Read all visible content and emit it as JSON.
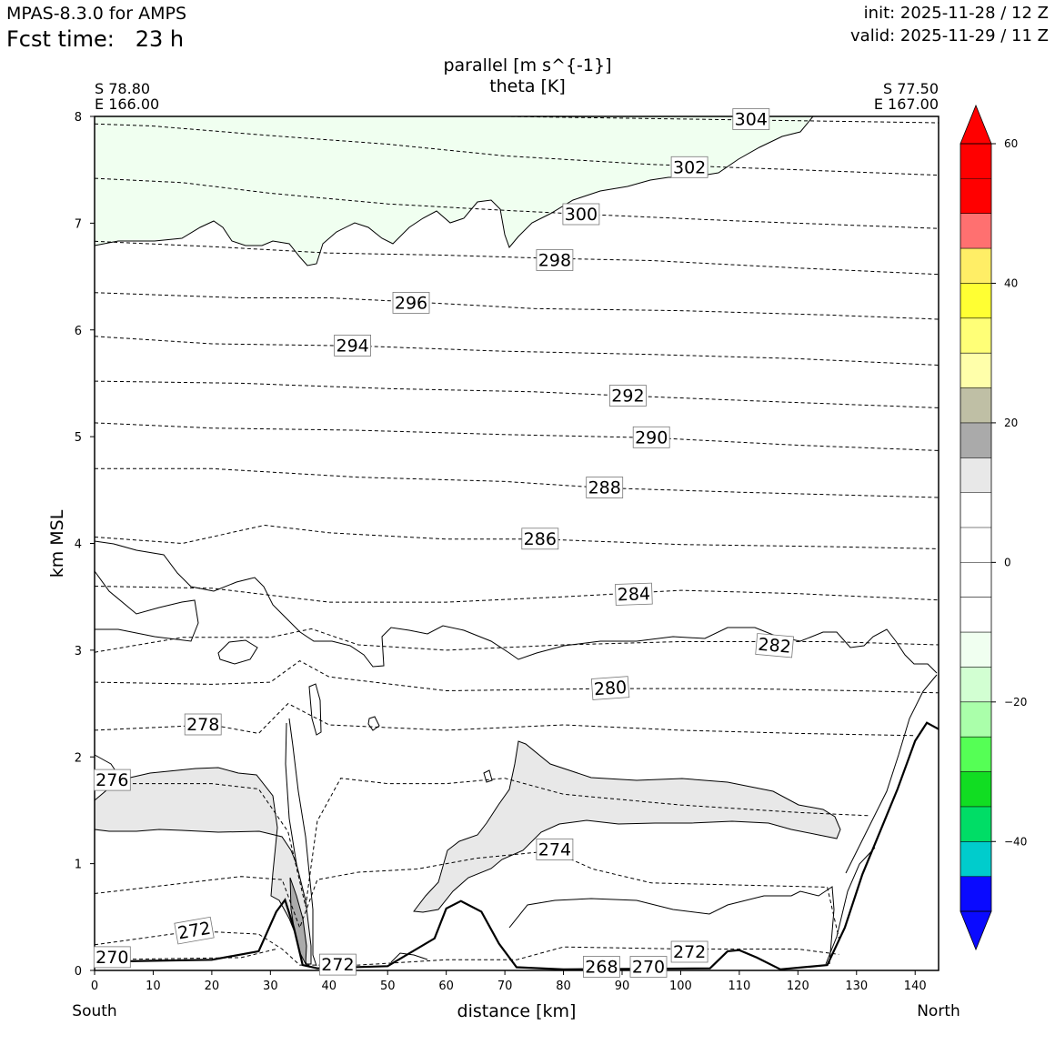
{
  "header": {
    "model": "MPAS-8.3.0 for AMPS",
    "fcst_label": "Fcst time:",
    "fcst_value": "23 h",
    "init": "init: 2025-11-28 / 12 Z",
    "valid": "valid: 2025-11-29 / 11 Z"
  },
  "chart_data": {
    "type": "contour",
    "title_line1": "parallel [m s^{-1}]",
    "title_line2": "theta [K]",
    "left_endpoint": {
      "lat": "S 78.80",
      "lon": "E 166.00"
    },
    "right_endpoint": {
      "lat": "S 77.50",
      "lon": "E 167.00"
    },
    "xlabel": "distance [km]",
    "ylabel": "km MSL",
    "x_ticks": [
      0,
      10,
      20,
      30,
      40,
      50,
      60,
      70,
      80,
      90,
      100,
      110,
      120,
      130,
      140
    ],
    "y_ticks": [
      0,
      1,
      2,
      3,
      4,
      5,
      6,
      7,
      8
    ],
    "xlim": [
      0,
      144
    ],
    "ylim": [
      0,
      8
    ],
    "south_label": "South",
    "north_label": "North",
    "colorbar": {
      "levels": [
        -50,
        -45,
        -40,
        -35,
        -30,
        -25,
        -20,
        -15,
        -10,
        -5,
        0,
        5,
        10,
        15,
        20,
        25,
        30,
        35,
        40,
        45,
        50,
        55,
        60
      ],
      "colors": [
        "#0a0aff",
        "#00cccc",
        "#00dd66",
        "#11dd22",
        "#55ff55",
        "#aaffaa",
        "#d2ffd2",
        "#f0fff0",
        "#ffffff",
        "#ffffff",
        "#ffffff",
        "#ffffff",
        "#e8e8e8",
        "#aaaaaa",
        "#bfbfa5",
        "#ffffaa",
        "#ffff77",
        "#ffff33",
        "#ffee66",
        "#ff7070",
        "#ff0000",
        "#ff0000"
      ],
      "under_color": "#0a0aff",
      "over_color": "#ff0000",
      "tick_values": [
        -40,
        -20,
        0,
        20,
        40,
        60
      ],
      "tick_labels": [
        "−40",
        "−20",
        "0",
        "20",
        "40",
        "60"
      ]
    },
    "theta_labels": [
      {
        "value": "304",
        "x": 112,
        "y": 7.97,
        "angle": 0
      },
      {
        "value": "302",
        "x": 101.5,
        "y": 7.52,
        "angle": 0
      },
      {
        "value": "300",
        "x": 83,
        "y": 7.08,
        "angle": 0
      },
      {
        "value": "298",
        "x": 78.5,
        "y": 6.65,
        "angle": 0
      },
      {
        "value": "296",
        "x": 54,
        "y": 6.25,
        "angle": 0
      },
      {
        "value": "294",
        "x": 44,
        "y": 5.85,
        "angle": 0
      },
      {
        "value": "292",
        "x": 91,
        "y": 5.38,
        "angle": 0
      },
      {
        "value": "290",
        "x": 95,
        "y": 4.99,
        "angle": 0
      },
      {
        "value": "288",
        "x": 87,
        "y": 4.52,
        "angle": 0
      },
      {
        "value": "286",
        "x": 76,
        "y": 4.04,
        "angle": 0
      },
      {
        "value": "284",
        "x": 92,
        "y": 3.52,
        "angle": -2
      },
      {
        "value": "282",
        "x": 116,
        "y": 3.04,
        "angle": 5
      },
      {
        "value": "280",
        "x": 88,
        "y": 2.64,
        "angle": -4
      },
      {
        "value": "278",
        "x": 18.5,
        "y": 2.3,
        "angle": 0
      },
      {
        "value": "276",
        "x": 3,
        "y": 1.78,
        "angle": 0
      },
      {
        "value": "274",
        "x": 78.5,
        "y": 1.13,
        "angle": 0
      },
      {
        "value": "272",
        "x": 17,
        "y": 0.37,
        "angle": -10
      },
      {
        "value": "272",
        "x": 41.5,
        "y": 0.05,
        "angle": 0
      },
      {
        "value": "268",
        "x": 86.5,
        "y": 0.03,
        "angle": 0
      },
      {
        "value": "270",
        "x": 94.5,
        "y": 0.03,
        "angle": 0
      },
      {
        "value": "272",
        "x": 101.5,
        "y": 0.17,
        "angle": 0
      },
      {
        "value": "270",
        "x": 3,
        "y": 0.12,
        "angle": 0
      }
    ],
    "theta_isentropes": [
      {
        "theta": 304,
        "points": [
          [
            70,
            8.0
          ],
          [
            144,
            7.94
          ]
        ]
      },
      {
        "theta": 302,
        "points": [
          [
            0,
            7.93
          ],
          [
            10,
            7.91
          ],
          [
            30,
            7.82
          ],
          [
            50,
            7.74
          ],
          [
            70,
            7.63
          ],
          [
            95,
            7.55
          ],
          [
            120,
            7.5
          ],
          [
            144,
            7.45
          ]
        ]
      },
      {
        "theta": 300,
        "points": [
          [
            0,
            7.42
          ],
          [
            15,
            7.38
          ],
          [
            30,
            7.28
          ],
          [
            50,
            7.18
          ],
          [
            70,
            7.12
          ],
          [
            85,
            7.08
          ],
          [
            110,
            7.02
          ],
          [
            144,
            6.95
          ]
        ]
      },
      {
        "theta": 298,
        "points": [
          [
            0,
            6.83
          ],
          [
            20,
            6.78
          ],
          [
            40,
            6.72
          ],
          [
            60,
            6.7
          ],
          [
            78,
            6.67
          ],
          [
            95,
            6.65
          ],
          [
            120,
            6.58
          ],
          [
            144,
            6.52
          ]
        ]
      },
      {
        "theta": 296,
        "points": [
          [
            0,
            6.35
          ],
          [
            25,
            6.3
          ],
          [
            40,
            6.3
          ],
          [
            55,
            6.26
          ],
          [
            75,
            6.2
          ],
          [
            100,
            6.18
          ],
          [
            125,
            6.14
          ],
          [
            144,
            6.1
          ]
        ]
      },
      {
        "theta": 294,
        "points": [
          [
            0,
            5.94
          ],
          [
            20,
            5.87
          ],
          [
            45,
            5.85
          ],
          [
            70,
            5.8
          ],
          [
            95,
            5.77
          ],
          [
            120,
            5.73
          ],
          [
            144,
            5.67
          ]
        ]
      },
      {
        "theta": 292,
        "points": [
          [
            0,
            5.52
          ],
          [
            25,
            5.5
          ],
          [
            50,
            5.45
          ],
          [
            75,
            5.42
          ],
          [
            92,
            5.38
          ],
          [
            115,
            5.33
          ],
          [
            144,
            5.27
          ]
        ]
      },
      {
        "theta": 290,
        "points": [
          [
            0,
            5.13
          ],
          [
            20,
            5.08
          ],
          [
            45,
            5.06
          ],
          [
            70,
            5.02
          ],
          [
            95,
            4.99
          ],
          [
            120,
            4.92
          ],
          [
            144,
            4.87
          ]
        ]
      },
      {
        "theta": 288,
        "points": [
          [
            0,
            4.7
          ],
          [
            20,
            4.7
          ],
          [
            45,
            4.62
          ],
          [
            70,
            4.58
          ],
          [
            87,
            4.52
          ],
          [
            110,
            4.48
          ],
          [
            144,
            4.43
          ]
        ]
      },
      {
        "theta": 286,
        "points": [
          [
            0,
            4.06
          ],
          [
            15,
            4.0
          ],
          [
            29,
            4.17
          ],
          [
            40,
            4.1
          ],
          [
            60,
            4.04
          ],
          [
            76,
            4.04
          ],
          [
            100,
            3.99
          ],
          [
            125,
            3.97
          ],
          [
            144,
            3.95
          ]
        ]
      },
      {
        "theta": 284,
        "points": [
          [
            0,
            3.6
          ],
          [
            20,
            3.58
          ],
          [
            40,
            3.45
          ],
          [
            60,
            3.45
          ],
          [
            80,
            3.5
          ],
          [
            100,
            3.56
          ],
          [
            120,
            3.53
          ],
          [
            144,
            3.47
          ]
        ]
      },
      {
        "theta": 282,
        "points": [
          [
            0,
            2.98
          ],
          [
            15,
            3.12
          ],
          [
            30,
            3.12
          ],
          [
            37,
            3.2
          ],
          [
            45,
            3.05
          ],
          [
            60,
            3.0
          ],
          [
            80,
            3.05
          ],
          [
            100,
            3.08
          ],
          [
            125,
            3.08
          ],
          [
            144,
            3.05
          ]
        ]
      },
      {
        "theta": 280,
        "points": [
          [
            0,
            2.7
          ],
          [
            20,
            2.68
          ],
          [
            30,
            2.7
          ],
          [
            35,
            2.9
          ],
          [
            40,
            2.75
          ],
          [
            60,
            2.62
          ],
          [
            88,
            2.64
          ],
          [
            110,
            2.64
          ],
          [
            130,
            2.62
          ],
          [
            144,
            2.6
          ]
        ]
      },
      {
        "theta": 278,
        "points": [
          [
            0,
            2.25
          ],
          [
            20,
            2.3
          ],
          [
            28,
            2.22
          ],
          [
            33,
            2.5
          ],
          [
            40,
            2.3
          ],
          [
            60,
            2.25
          ],
          [
            80,
            2.3
          ],
          [
            100,
            2.25
          ],
          [
            120,
            2.22
          ],
          [
            140,
            2.2
          ]
        ]
      },
      {
        "theta": 276,
        "points": [
          [
            0,
            1.75
          ],
          [
            20,
            1.75
          ],
          [
            28,
            1.7
          ],
          [
            33,
            1.3
          ],
          [
            36,
            0.6
          ],
          [
            38,
            1.4
          ],
          [
            42,
            1.8
          ],
          [
            50,
            1.75
          ],
          [
            60,
            1.75
          ],
          [
            70,
            1.8
          ],
          [
            80,
            1.65
          ],
          [
            100,
            1.55
          ],
          [
            120,
            1.48
          ],
          [
            132,
            1.45
          ]
        ]
      },
      {
        "theta": 274,
        "points": [
          [
            0,
            0.72
          ],
          [
            25,
            0.88
          ],
          [
            32,
            0.85
          ],
          [
            35,
            0.4
          ],
          [
            38,
            0.85
          ],
          [
            45,
            0.92
          ],
          [
            55,
            0.95
          ],
          [
            65,
            1.05
          ],
          [
            78,
            1.12
          ],
          [
            85,
            0.95
          ],
          [
            95,
            0.82
          ],
          [
            110,
            0.8
          ],
          [
            125,
            0.78
          ],
          [
            127,
            0.3
          ]
        ]
      },
      {
        "theta": 272,
        "points": [
          [
            0,
            0.24
          ],
          [
            17,
            0.37
          ],
          [
            28,
            0.34
          ],
          [
            32,
            0.2
          ],
          [
            35,
            0.05
          ],
          [
            45,
            0.05
          ],
          [
            60,
            0.1
          ],
          [
            72,
            0.1
          ],
          [
            80,
            0.22
          ],
          [
            101,
            0.2
          ],
          [
            120,
            0.2
          ],
          [
            127,
            0.15
          ]
        ]
      },
      {
        "theta": 270,
        "points": [
          [
            0,
            0.1
          ],
          [
            25,
            0.12
          ],
          [
            31,
            0.2
          ]
        ]
      }
    ],
    "terrain": [
      [
        0,
        0.08
      ],
      [
        10,
        0.09
      ],
      [
        20,
        0.1
      ],
      [
        28,
        0.18
      ],
      [
        31,
        0.55
      ],
      [
        32.5,
        0.66
      ],
      [
        34,
        0.4
      ],
      [
        35.5,
        0.05
      ],
      [
        38,
        0.02
      ],
      [
        50,
        0.04
      ],
      [
        58,
        0.3
      ],
      [
        60,
        0.58
      ],
      [
        62.5,
        0.65
      ],
      [
        66,
        0.55
      ],
      [
        69,
        0.25
      ],
      [
        72,
        0.03
      ],
      [
        80,
        0.01
      ],
      [
        105,
        0.02
      ],
      [
        108,
        0.18
      ],
      [
        110,
        0.19
      ],
      [
        113,
        0.12
      ],
      [
        117,
        0.01
      ],
      [
        125,
        0.05
      ],
      [
        128,
        0.4
      ],
      [
        131,
        0.9
      ],
      [
        134,
        1.3
      ],
      [
        137,
        1.7
      ],
      [
        140,
        2.15
      ],
      [
        142,
        2.32
      ],
      [
        144,
        2.26
      ]
    ]
  }
}
